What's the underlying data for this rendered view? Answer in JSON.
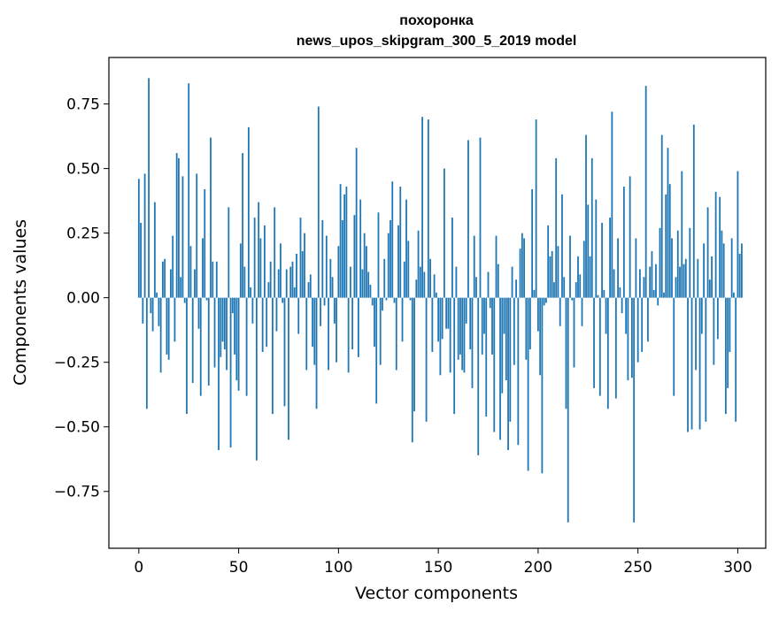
{
  "chart_data": {
    "type": "bar",
    "title": "похоронка",
    "subtitle": "news_upos_skipgram_300_5_2019 model",
    "xlabel": "Vector components",
    "ylabel": "Components values",
    "xlim": [
      -15,
      314
    ],
    "ylim": [
      -0.97,
      0.93
    ],
    "xticks": [
      0,
      50,
      100,
      150,
      200,
      250,
      300
    ],
    "yticks": [
      -0.75,
      -0.5,
      -0.25,
      0.0,
      0.25,
      0.5,
      0.75
    ],
    "xtick_labels": [
      "0",
      "50",
      "100",
      "150",
      "200",
      "250",
      "300"
    ],
    "ytick_labels": [
      "−0.75",
      "−0.50",
      "−0.25",
      "0.00",
      "0.25",
      "0.50",
      "0.75"
    ],
    "bar_color": "#1f77b4",
    "grid": false,
    "legend": "none",
    "values": [
      0.46,
      0.29,
      -0.1,
      0.48,
      -0.43,
      0.85,
      -0.06,
      -0.13,
      0.37,
      0.02,
      -0.11,
      -0.29,
      0.14,
      0.15,
      -0.22,
      -0.24,
      0.11,
      0.24,
      -0.17,
      0.56,
      0.54,
      0.08,
      0.47,
      -0.02,
      -0.45,
      0.83,
      0.2,
      -0.33,
      0.11,
      0.48,
      -0.12,
      -0.38,
      0.23,
      0.42,
      -0.01,
      -0.34,
      0.62,
      0.14,
      -0.27,
      0.14,
      -0.59,
      -0.23,
      -0.17,
      -0.2,
      -0.28,
      0.35,
      -0.58,
      -0.06,
      -0.22,
      -0.32,
      -0.36,
      0.21,
      0.56,
      0.12,
      -0.38,
      0.66,
      0.04,
      -0.1,
      0.31,
      -0.63,
      0.37,
      0.23,
      -0.21,
      0.28,
      -0.19,
      0.06,
      0.14,
      -0.45,
      0.35,
      -0.13,
      0.11,
      0.21,
      -0.02,
      -0.42,
      0.11,
      -0.55,
      0.12,
      0.14,
      0.04,
      0.17,
      -0.14,
      0.31,
      0.18,
      0.25,
      -0.28,
      0.06,
      0.09,
      -0.19,
      -0.26,
      -0.43,
      0.74,
      -0.11,
      0.3,
      -0.03,
      0.24,
      -0.28,
      0.15,
      0.08,
      -0.1,
      -0.25,
      0.2,
      0.44,
      0.3,
      0.4,
      0.43,
      -0.29,
      0.12,
      -0.2,
      0.32,
      0.58,
      -0.23,
      0.38,
      0.11,
      0.25,
      0.2,
      0.1,
      0.05,
      -0.03,
      -0.19,
      -0.41,
      0.33,
      -0.26,
      -0.05,
      0.15,
      -0.01,
      0.25,
      0.3,
      0.45,
      -0.02,
      -0.28,
      0.28,
      0.43,
      -0.17,
      0.14,
      0.38,
      0.22,
      -0.01,
      -0.56,
      -0.44,
      0.07,
      0.26,
      0.12,
      0.7,
      0.1,
      -0.48,
      0.69,
      0.15,
      -0.21,
      0.09,
      0.02,
      -0.17,
      -0.3,
      -0.16,
      0.5,
      -0.12,
      -0.12,
      -0.29,
      0.31,
      -0.45,
      0.12,
      -0.24,
      -0.22,
      -0.28,
      -0.29,
      -0.1,
      0.61,
      -0.2,
      -0.35,
      0.24,
      0.08,
      -0.61,
      0.62,
      -0.22,
      -0.14,
      -0.46,
      0.1,
      -0.04,
      -0.22,
      -0.52,
      0.24,
      0.13,
      -0.55,
      -0.37,
      -0.14,
      -0.32,
      -0.59,
      -0.48,
      0.12,
      -0.26,
      0.07,
      -0.57,
      0.19,
      0.25,
      0.23,
      -0.24,
      -0.67,
      -0.2,
      0.42,
      0.03,
      0.69,
      -0.13,
      -0.3,
      -0.68,
      -0.03,
      -0.02,
      0.28,
      0.16,
      0.18,
      0.06,
      0.54,
      0.2,
      -0.11,
      0.4,
      0.08,
      -0.43,
      -0.87,
      0.24,
      -0.01,
      -0.27,
      0.06,
      0.16,
      0.09,
      -0.11,
      0.22,
      0.63,
      0.36,
      0.16,
      0.54,
      -0.35,
      0.38,
      0.01,
      -0.38,
      0.29,
      0.03,
      -0.14,
      -0.43,
      0.31,
      0.72,
      0.11,
      -0.39,
      0.23,
      0.04,
      -0.06,
      0.43,
      -0.14,
      -0.32,
      0.47,
      -0.31,
      -0.87,
      0.23,
      -0.25,
      0.11,
      -0.21,
      0.08,
      0.82,
      -0.17,
      0.12,
      0.18,
      0.03,
      0.13,
      -0.03,
      0.27,
      0.63,
      0.02,
      0.4,
      0.58,
      0.44,
      0.23,
      -0.38,
      0.08,
      0.26,
      0.12,
      0.49,
      0.13,
      0.15,
      -0.52,
      0.27,
      -0.51,
      0.67,
      -0.28,
      0.15,
      -0.51,
      -0.14,
      0.21,
      -0.48,
      0.35,
      0.07,
      0.16,
      -0.26,
      0.41,
      -0.16,
      0.39,
      0.26,
      0.21,
      -0.45,
      -0.35,
      -0.21,
      0.23,
      0.02,
      -0.48,
      0.49,
      0.17,
      0.21
    ]
  }
}
